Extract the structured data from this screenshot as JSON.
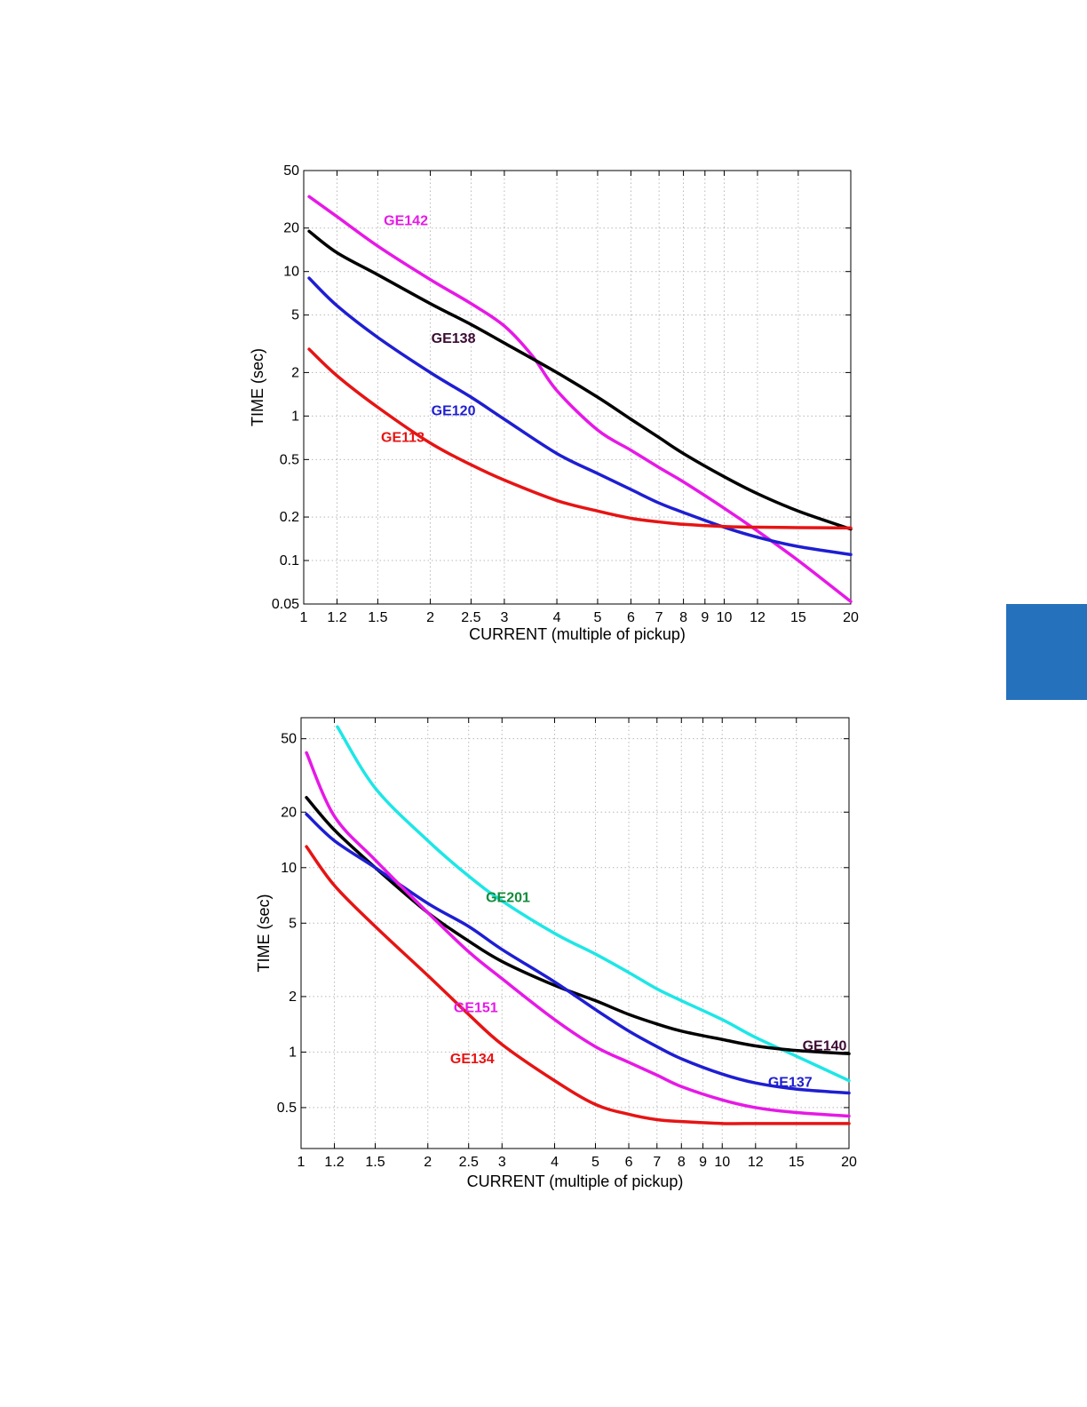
{
  "page": {
    "side_tab_color": "#2571BC"
  },
  "chart_data": [
    {
      "type": "line",
      "xscale": "log",
      "yscale": "log",
      "xlim": [
        1,
        20
      ],
      "ylim": [
        0.05,
        50
      ],
      "xlabel": "CURRENT (multiple of pickup)",
      "ylabel": "TIME (sec)",
      "grid": true,
      "x_ticks": [
        1,
        1.2,
        1.5,
        2,
        2.5,
        3,
        4,
        5,
        6,
        7,
        8,
        9,
        10,
        12,
        15,
        20
      ],
      "x_tick_labels": [
        "1",
        "1.2",
        "1.5",
        "2",
        "2.5",
        "3",
        "4",
        "5",
        "6",
        "7",
        "8",
        "9",
        "10",
        "12",
        "15",
        "20"
      ],
      "y_ticks": [
        0.05,
        0.1,
        0.2,
        0.5,
        1,
        2,
        5,
        10,
        20,
        50
      ],
      "y_tick_labels": [
        "0.05",
        "0.1",
        "0.2",
        "0.5",
        "1",
        "2",
        "5",
        "10",
        "20",
        "50"
      ],
      "series": [
        {
          "name": "GE142",
          "color": "#E619E6",
          "label_color": "#E619E6",
          "label_at": [
            1.75,
            21
          ],
          "x": [
            1.03,
            1.2,
            1.5,
            2,
            2.5,
            3,
            3.5,
            4,
            5,
            6,
            7,
            8,
            10,
            12,
            15,
            20
          ],
          "y": [
            33,
            24,
            15,
            8.8,
            6,
            4.2,
            2.6,
            1.5,
            0.8,
            0.58,
            0.44,
            0.35,
            0.23,
            0.16,
            0.1,
            0.052
          ]
        },
        {
          "name": "GE138",
          "color": "#000000",
          "label_color": "#3C0A32",
          "label_at": [
            2.27,
            3.2
          ],
          "x": [
            1.03,
            1.2,
            1.5,
            2,
            2.5,
            3,
            4,
            5,
            6,
            7,
            8,
            10,
            12,
            15,
            20
          ],
          "y": [
            19,
            13.5,
            9.5,
            6,
            4.3,
            3.2,
            2,
            1.35,
            0.95,
            0.71,
            0.55,
            0.38,
            0.29,
            0.22,
            0.165
          ]
        },
        {
          "name": "GE120",
          "color": "#1E1ED2",
          "label_color": "#1E1ED2",
          "label_at": [
            2.27,
            1.01
          ],
          "x": [
            1.03,
            1.2,
            1.5,
            2,
            2.5,
            3,
            4,
            5,
            6,
            7,
            8,
            10,
            12,
            15,
            20
          ],
          "y": [
            9,
            5.8,
            3.5,
            2,
            1.35,
            0.95,
            0.55,
            0.4,
            0.31,
            0.25,
            0.215,
            0.17,
            0.145,
            0.125,
            0.11
          ]
        },
        {
          "name": "GE113",
          "color": "#E61414",
          "label_color": "#E61414",
          "label_at": [
            1.72,
            0.66
          ],
          "x": [
            1.03,
            1.2,
            1.5,
            2,
            2.5,
            3,
            4,
            5,
            6,
            7,
            8,
            10,
            12,
            15,
            20
          ],
          "y": [
            2.9,
            1.9,
            1.15,
            0.65,
            0.46,
            0.36,
            0.26,
            0.22,
            0.196,
            0.185,
            0.178,
            0.172,
            0.17,
            0.169,
            0.168
          ]
        }
      ]
    },
    {
      "type": "line",
      "xscale": "log",
      "yscale": "log",
      "xlim": [
        1,
        20
      ],
      "ylim": [
        0.3,
        65
      ],
      "xlabel": "CURRENT (multiple of pickup)",
      "ylabel": "TIME (sec)",
      "grid": true,
      "x_ticks": [
        1,
        1.2,
        1.5,
        2,
        2.5,
        3,
        4,
        5,
        6,
        7,
        8,
        9,
        10,
        12,
        15,
        20
      ],
      "x_tick_labels": [
        "1",
        "1.2",
        "1.5",
        "2",
        "2.5",
        "3",
        "4",
        "5",
        "6",
        "7",
        "8",
        "9",
        "10",
        "12",
        "15",
        "20"
      ],
      "y_ticks": [
        0.5,
        1,
        2,
        5,
        10,
        20,
        50
      ],
      "y_tick_labels": [
        "0.5",
        "1",
        "2",
        "5",
        "10",
        "20",
        "50"
      ],
      "series": [
        {
          "name": "GE201",
          "color": "#1EE6E6",
          "label_color": "#148C3C",
          "label_at": [
            3.1,
            6.5
          ],
          "x": [
            1.22,
            1.5,
            2,
            2.5,
            3,
            4,
            5,
            6,
            7,
            8,
            10,
            12,
            15,
            20
          ],
          "y": [
            58,
            27,
            14,
            9,
            6.6,
            4.4,
            3.4,
            2.7,
            2.2,
            1.9,
            1.5,
            1.2,
            0.95,
            0.7
          ]
        },
        {
          "name": "GE140",
          "color": "#000000",
          "label_color": "#3C0A32",
          "label_at": [
            17.5,
            1.02
          ],
          "x": [
            1.03,
            1.2,
            1.5,
            2,
            2.5,
            3,
            4,
            5,
            6,
            7,
            8,
            10,
            12,
            15,
            20
          ],
          "y": [
            24,
            16,
            10,
            5.7,
            4,
            3.1,
            2.3,
            1.9,
            1.6,
            1.42,
            1.3,
            1.17,
            1.08,
            1.02,
            0.98
          ]
        },
        {
          "name": "GE137",
          "color": "#1E1ED2",
          "label_color": "#1E1ED2",
          "label_at": [
            14.5,
            0.65
          ],
          "x": [
            1.03,
            1.2,
            1.5,
            2,
            2.5,
            3,
            4,
            5,
            6,
            7,
            8,
            10,
            12,
            15,
            20
          ],
          "y": [
            19.5,
            14,
            10,
            6.4,
            4.8,
            3.6,
            2.4,
            1.7,
            1.3,
            1.07,
            0.92,
            0.76,
            0.68,
            0.63,
            0.6
          ]
        },
        {
          "name": "GE151",
          "color": "#E619E6",
          "label_color": "#E619E6",
          "label_at": [
            2.6,
            1.65
          ],
          "x": [
            1.03,
            1.2,
            1.5,
            2,
            2.5,
            3,
            4,
            5,
            6,
            7,
            8,
            10,
            12,
            15,
            20
          ],
          "y": [
            42,
            19,
            11,
            5.7,
            3.5,
            2.5,
            1.5,
            1.07,
            0.88,
            0.75,
            0.65,
            0.55,
            0.5,
            0.47,
            0.45
          ]
        },
        {
          "name": "GE134",
          "color": "#E61414",
          "label_color": "#E61414",
          "label_at": [
            2.55,
            0.87
          ],
          "x": [
            1.03,
            1.2,
            1.5,
            2,
            2.5,
            3,
            4,
            5,
            6,
            7,
            8,
            10,
            12,
            15,
            20
          ],
          "y": [
            13,
            8,
            4.8,
            2.6,
            1.6,
            1.1,
            0.7,
            0.52,
            0.46,
            0.43,
            0.42,
            0.41,
            0.41,
            0.41,
            0.41
          ]
        }
      ]
    }
  ]
}
